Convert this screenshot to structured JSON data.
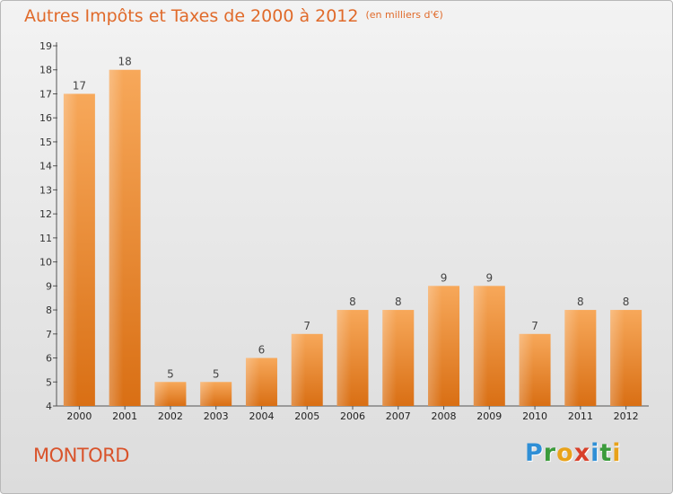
{
  "header": {
    "title": "Autres Impôts et Taxes de 2000 à 2012",
    "unit": "(en milliers d'€)"
  },
  "footer": {
    "commune": "MONTORD",
    "logo_letters": [
      {
        "ch": "P",
        "color": "#2f8fd6"
      },
      {
        "ch": "r",
        "color": "#3b9b3b"
      },
      {
        "ch": "o",
        "color": "#e8a21a"
      },
      {
        "ch": "x",
        "color": "#d8402a"
      },
      {
        "ch": "i",
        "color": "#2f8fd6"
      },
      {
        "ch": "t",
        "color": "#3b9b3b"
      },
      {
        "ch": "i",
        "color": "#e8a21a"
      }
    ]
  },
  "chart_data": {
    "type": "bar",
    "title": "Autres Impôts et Taxes de 2000 à 2012",
    "unit": "(en milliers d'€)",
    "categories": [
      "2000",
      "2001",
      "2002",
      "2003",
      "2004",
      "2005",
      "2006",
      "2007",
      "2008",
      "2009",
      "2010",
      "2011",
      "2012"
    ],
    "values": [
      17,
      18,
      5,
      5,
      6,
      7,
      8,
      8,
      9,
      9,
      7,
      8,
      8
    ],
    "ylim": [
      4,
      19
    ],
    "yticks": [
      4,
      5,
      6,
      7,
      8,
      9,
      10,
      11,
      12,
      13,
      14,
      15,
      16,
      17,
      18,
      19
    ],
    "bar_color": "#f0923e",
    "grid": false
  }
}
